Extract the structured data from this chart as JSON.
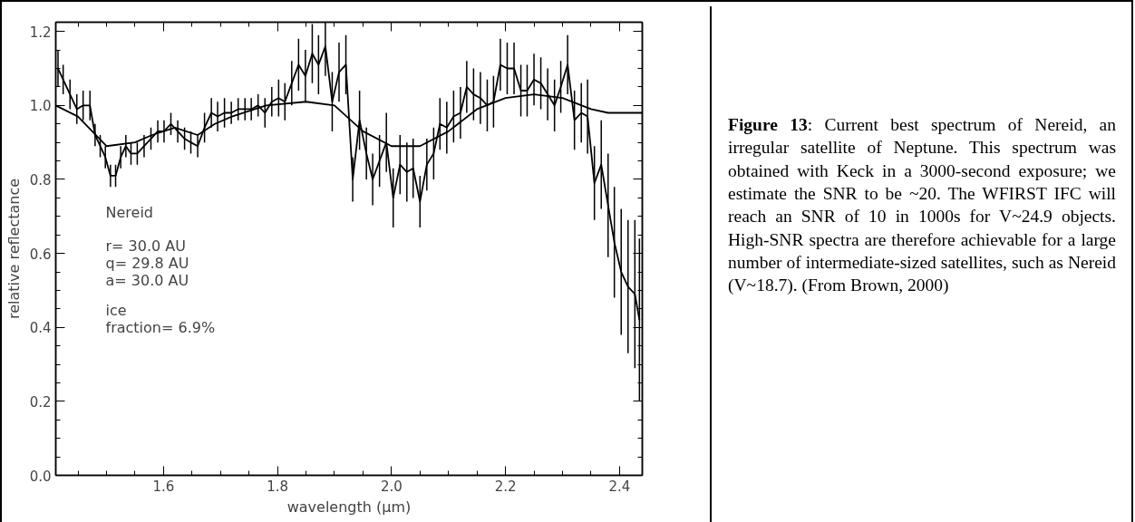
{
  "chart_data": {
    "type": "line",
    "xlabel": "wavelength (μm)",
    "ylabel": "relative reflectance",
    "xlim": [
      1.411,
      2.44
    ],
    "ylim": [
      0,
      1.225
    ],
    "xticks": [
      1.6,
      1.8,
      {
        "value": 2.0,
        "label": "2.0"
      },
      2.2,
      2.4
    ],
    "yticks": [
      {
        "value": 0,
        "label": "0.0"
      },
      {
        "value": 0.2,
        "label": "0.2"
      },
      {
        "value": 0.4,
        "label": "0.4"
      },
      {
        "value": 0.6,
        "label": "0.6"
      },
      {
        "value": 0.8,
        "label": "0.8"
      },
      {
        "value": 1.0,
        "label": "1.0"
      },
      {
        "value": 1.2,
        "label": "1.2"
      }
    ],
    "grid": false,
    "marker": "none",
    "line_style": "solid",
    "series": [
      {
        "color": "#000000",
        "x": [
          1.415,
          1.424,
          1.436,
          1.448,
          1.459,
          1.471,
          1.48,
          1.489,
          1.498,
          1.507,
          1.516,
          1.525,
          1.534,
          1.543,
          1.554,
          1.566,
          1.578,
          1.59,
          1.601,
          1.613,
          1.625,
          1.637,
          1.648,
          1.66,
          1.672,
          1.684,
          1.695,
          1.707,
          1.719,
          1.731,
          1.743,
          1.754,
          1.766,
          1.778,
          1.79,
          1.802,
          1.813,
          1.825,
          1.837,
          1.849,
          1.861,
          1.872,
          1.884,
          1.896,
          1.908,
          1.92,
          1.932,
          1.944,
          1.956,
          1.967,
          1.979,
          1.991,
          2.003,
          2.015,
          2.027,
          2.038,
          2.05,
          2.062,
          2.074,
          2.085,
          2.097,
          2.109,
          2.121,
          2.132,
          2.144,
          2.156,
          2.168,
          2.179,
          2.191,
          2.203,
          2.215,
          2.227,
          2.238,
          2.25,
          2.262,
          2.274,
          2.286,
          2.297,
          2.309,
          2.321,
          2.333,
          2.344,
          2.356,
          2.368,
          2.38,
          2.391,
          2.403,
          2.415,
          2.427,
          2.435
        ],
        "values": [
          1.1,
          1.07,
          1.03,
          0.99,
          1.0,
          1.0,
          0.92,
          0.89,
          0.86,
          0.81,
          0.81,
          0.86,
          0.89,
          0.87,
          0.87,
          0.89,
          0.91,
          0.93,
          0.93,
          0.95,
          0.93,
          0.91,
          0.9,
          0.89,
          0.94,
          0.98,
          0.97,
          0.98,
          0.98,
          0.99,
          0.99,
          0.99,
          1.0,
          0.98,
          1.01,
          1.02,
          1.01,
          1.06,
          1.11,
          1.08,
          1.14,
          1.11,
          1.16,
          1.01,
          1.09,
          1.11,
          0.8,
          0.96,
          0.87,
          0.8,
          0.85,
          0.9,
          0.75,
          0.84,
          0.82,
          0.83,
          0.74,
          0.84,
          0.87,
          0.95,
          0.94,
          0.97,
          0.98,
          1.05,
          1.03,
          1.02,
          1.0,
          1.01,
          1.11,
          1.1,
          1.1,
          1.04,
          1.04,
          1.07,
          1.06,
          1.03,
          1.0,
          1.05,
          1.11,
          0.96,
          0.98,
          0.97,
          0.79,
          0.84,
          0.73,
          0.63,
          0.55,
          0.51,
          0.49,
          0.42
        ],
        "errors": [
          0.05,
          0.04,
          0.04,
          0.04,
          0.04,
          0.04,
          0.03,
          0.03,
          0.03,
          0.03,
          0.03,
          0.03,
          0.03,
          0.03,
          0.03,
          0.03,
          0.03,
          0.03,
          0.03,
          0.03,
          0.03,
          0.03,
          0.03,
          0.03,
          0.04,
          0.04,
          0.04,
          0.04,
          0.03,
          0.03,
          0.03,
          0.03,
          0.03,
          0.04,
          0.04,
          0.05,
          0.05,
          0.06,
          0.07,
          0.07,
          0.08,
          0.08,
          0.08,
          0.08,
          0.08,
          0.08,
          0.06,
          0.08,
          0.07,
          0.07,
          0.07,
          0.08,
          0.08,
          0.08,
          0.08,
          0.08,
          0.07,
          0.07,
          0.07,
          0.07,
          0.07,
          0.07,
          0.07,
          0.07,
          0.07,
          0.07,
          0.07,
          0.07,
          0.07,
          0.07,
          0.07,
          0.07,
          0.07,
          0.07,
          0.07,
          0.07,
          0.07,
          0.07,
          0.08,
          0.08,
          0.08,
          0.1,
          0.1,
          0.12,
          0.14,
          0.15,
          0.17,
          0.18,
          0.2,
          0.22
        ]
      },
      {
        "color": "#000000",
        "x": [
          1.411,
          1.45,
          1.5,
          1.55,
          1.58,
          1.62,
          1.66,
          1.69,
          1.72,
          1.78,
          1.85,
          1.9,
          1.95,
          2.0,
          2.05,
          2.1,
          2.15,
          2.2,
          2.25,
          2.3,
          2.35,
          2.38,
          2.44
        ],
        "values": [
          1.0,
          0.97,
          0.89,
          0.9,
          0.92,
          0.94,
          0.92,
          0.95,
          0.97,
          1.0,
          1.01,
          1.0,
          0.93,
          0.89,
          0.89,
          0.93,
          0.99,
          1.02,
          1.03,
          1.02,
          0.99,
          0.98,
          0.98
        ]
      }
    ],
    "annotations": [
      "Nereid",
      "r= 30.0 AU\nq= 29.8 AU\na= 30.0 AU",
      "ice\nfraction= 6.9%",
      "Figure 13: Current best spectrum of Nereid, an irregular satellite of Neptune. This spectrum was obtained with Keck in a 3000-second exposure; we estimate the SNR to be ~20. The WFIRST IFC will reach an SNR of 10 in 1000s for V~24.9 objects. High-SNR spectra are therefore achievable for a large number of intermediate-sized satellites, such as Nereid (V~18.7). (From Brown, 2000)"
    ]
  }
}
